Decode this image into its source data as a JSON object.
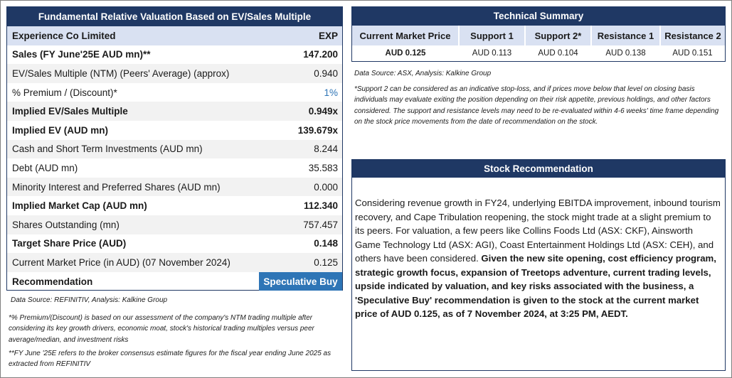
{
  "valuation": {
    "title": "Fundamental Relative Valuation Based on EV/Sales Multiple",
    "company": "Experience Co Limited",
    "ticker": "EXP",
    "rows": [
      {
        "label": "Sales (FY June'25E AUD mn)**",
        "value": "147.200",
        "bold": true
      },
      {
        "label": "EV/Sales Multiple (NTM)  (Peers' Average) (approx)",
        "value": "0.940"
      },
      {
        "label": "% Premium / (Discount)*",
        "value": "1%"
      },
      {
        "label": "Implied EV/Sales Multiple",
        "value": "0.949x",
        "bold": true
      },
      {
        "label": "Implied EV (AUD mn)",
        "value": "139.679x",
        "bold": true
      },
      {
        "label": "Cash and Short Term Investments (AUD mn)",
        "value": "8.244"
      },
      {
        "label": "Debt (AUD mn)",
        "value": "35.583"
      },
      {
        "label": "Minority Interest and Preferred Shares (AUD mn)",
        "value": "0.000"
      },
      {
        "label": "Implied Market Cap (AUD mn)",
        "value": "112.340",
        "bold": true
      },
      {
        "label": "Shares Outstanding (mn)",
        "value": "757.457"
      },
      {
        "label": "Target Share Price (AUD)",
        "value": "0.148",
        "bold": true
      },
      {
        "label": "Current Market Price (in AUD) (07 November 2024)",
        "value": "0.125"
      }
    ],
    "recommendation_label": "Recommendation",
    "recommendation_value": "Speculative Buy",
    "source": "Data Source: REFINITIV, Analysis: Kalkine Group",
    "footnote1": "*% Premium/(Discount) is based on our assessment of the company's NTM trading multiple after considering its key growth drivers, economic moat, stock's historical trading multiples versus peer average/median, and investment risks",
    "footnote2": "**FY June '25E refers to the broker consensus estimate figures for the fiscal year ending June 2025  as extracted from REFINITIV"
  },
  "technical": {
    "title": "Technical Summary",
    "headers": [
      "Current Market Price",
      "Support 1",
      "Support 2*",
      "Resistance 1",
      "Resistance 2"
    ],
    "values": [
      "AUD 0.125",
      "AUD 0.113",
      "AUD 0.104",
      "AUD 0.138",
      "AUD 0.151"
    ],
    "source": "Data Source: ASX, Analysis: Kalkine Group",
    "note": "*Support 2 can be considered as an indicative stop-loss, and if prices move below that level on closing basis individuals may evaluate exiting the position depending on their risk appetite, previous holdings, and other factors considered. The support and resistance levels may need to be re-evaluated within 4-6 weeks' time frame depending on the stock price movements from the date of recommendation on the stock."
  },
  "recommendation": {
    "title": "Stock Recommendation",
    "text_plain": "Considering revenue growth in FY24, underlying EBITDA improvement, inbound tourism recovery, and Cape Tribulation reopening, the stock might trade at a slight premium to its peers. For valuation, a few peers like Collins Foods Ltd (ASX: CKF), Ainsworth Game Technology Ltd (ASX: AGI), Coast Entertainment Holdings Ltd (ASX: CEH), and others have been considered. ",
    "text_bold": "Given the new site opening, cost efficiency program, strategic growth focus, expansion of Treetops adventure, current trading levels, upside indicated by valuation, and key risks associated with the business, a 'Speculative Buy' recommendation is given to the stock at the current market price of AUD 0.125, as of 7 November 2024, at 3:25 PM, AEDT."
  },
  "colors": {
    "navy": "#1f3864",
    "header_light": "#d9e1f2",
    "accent_blue": "#2e75b6",
    "row_alt": "#f2f2f2"
  }
}
